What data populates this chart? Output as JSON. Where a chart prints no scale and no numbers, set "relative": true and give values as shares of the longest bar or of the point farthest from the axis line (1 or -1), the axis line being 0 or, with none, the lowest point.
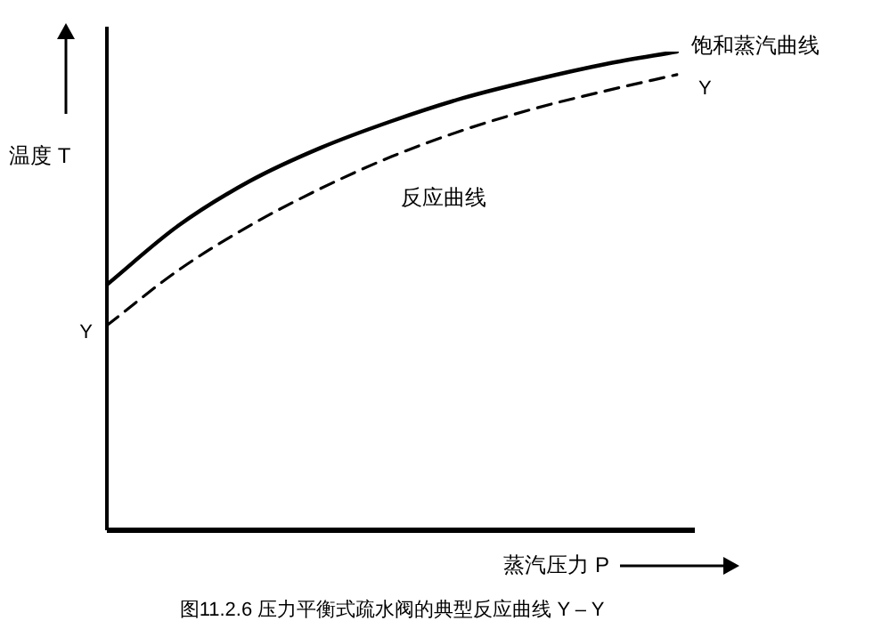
{
  "chart_data": {
    "type": "line",
    "relative": true,
    "xlabel": "蒸汽压力 P",
    "ylabel": "温度 T",
    "categories": [
      null,
      null,
      null,
      null,
      null,
      null,
      null,
      null,
      null
    ],
    "series": [
      {
        "name": "饱和蒸汽曲线",
        "color": "#000000",
        "line_style": "solid",
        "values": [
          0.513,
          0.636,
          0.729,
          0.799,
          0.855,
          0.903,
          0.941,
          0.974,
          1
        ]
      },
      {
        "name": "反应曲线",
        "color": "#000000",
        "line_style": "dashed",
        "values": [
          0.428,
          0.543,
          0.636,
          0.714,
          0.781,
          0.836,
          0.881,
          0.918,
          0.952
        ]
      }
    ],
    "annotations": [
      "Y",
      "Y",
      "图11.2.6 压力平衡式疏水阀的典型反应曲线 Y – Y"
    ],
    "legend": false,
    "marker": "none"
  }
}
